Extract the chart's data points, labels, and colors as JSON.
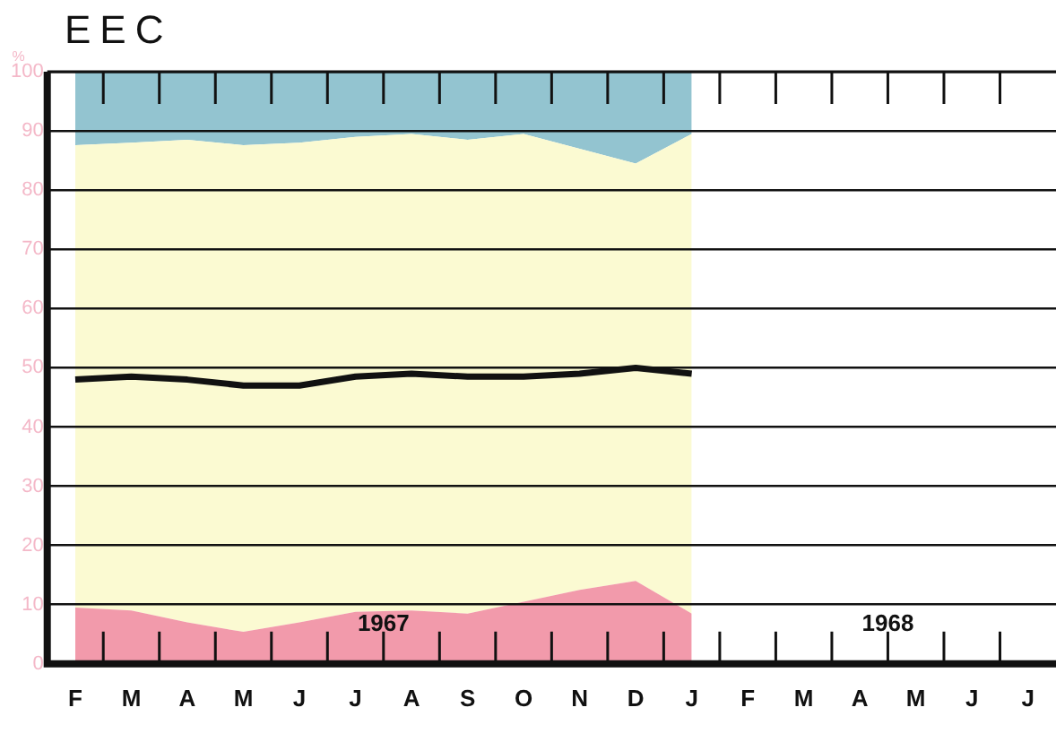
{
  "chart_data": {
    "type": "area",
    "title": "EEC",
    "ylabel": "%",
    "stacked": true,
    "categories": [
      "F",
      "M",
      "A",
      "M",
      "J",
      "J",
      "A",
      "S",
      "O",
      "N",
      "D",
      "J",
      "F",
      "M",
      "A",
      "M",
      "J",
      "J"
    ],
    "series": [
      {
        "color": "#f29aab",
        "values": [
          9.5,
          9,
          7,
          5.4,
          7,
          8.8,
          9,
          8.5,
          10.5,
          12.5,
          14,
          8.5,
          null,
          null,
          null,
          null,
          null,
          null
        ]
      },
      {
        "color": "#fbfad2",
        "values": [
          78.1,
          79,
          81.5,
          82.2,
          81,
          80.2,
          80.5,
          80,
          79,
          74.5,
          70.5,
          81,
          null,
          null,
          null,
          null,
          null,
          null
        ]
      },
      {
        "color": "#93c4d0",
        "values": [
          12.4,
          12,
          11.5,
          12.4,
          12,
          11,
          10.5,
          11.5,
          10.5,
          13,
          15.5,
          10.5,
          null,
          null,
          null,
          null,
          null,
          null
        ]
      },
      {
        "type": "line",
        "color": "#111111",
        "values": [
          48,
          48.5,
          48,
          47,
          47,
          48.5,
          49,
          48.5,
          48.5,
          49,
          50,
          49,
          null,
          null,
          null,
          null,
          null,
          null
        ]
      }
    ],
    "ylim": [
      0,
      100
    ],
    "yticks": [
      0,
      10,
      20,
      30,
      40,
      50,
      60,
      70,
      80,
      90,
      100
    ],
    "grid": "y",
    "legend": false,
    "marker": "none",
    "annotations": [
      "1967",
      "1968"
    ]
  }
}
